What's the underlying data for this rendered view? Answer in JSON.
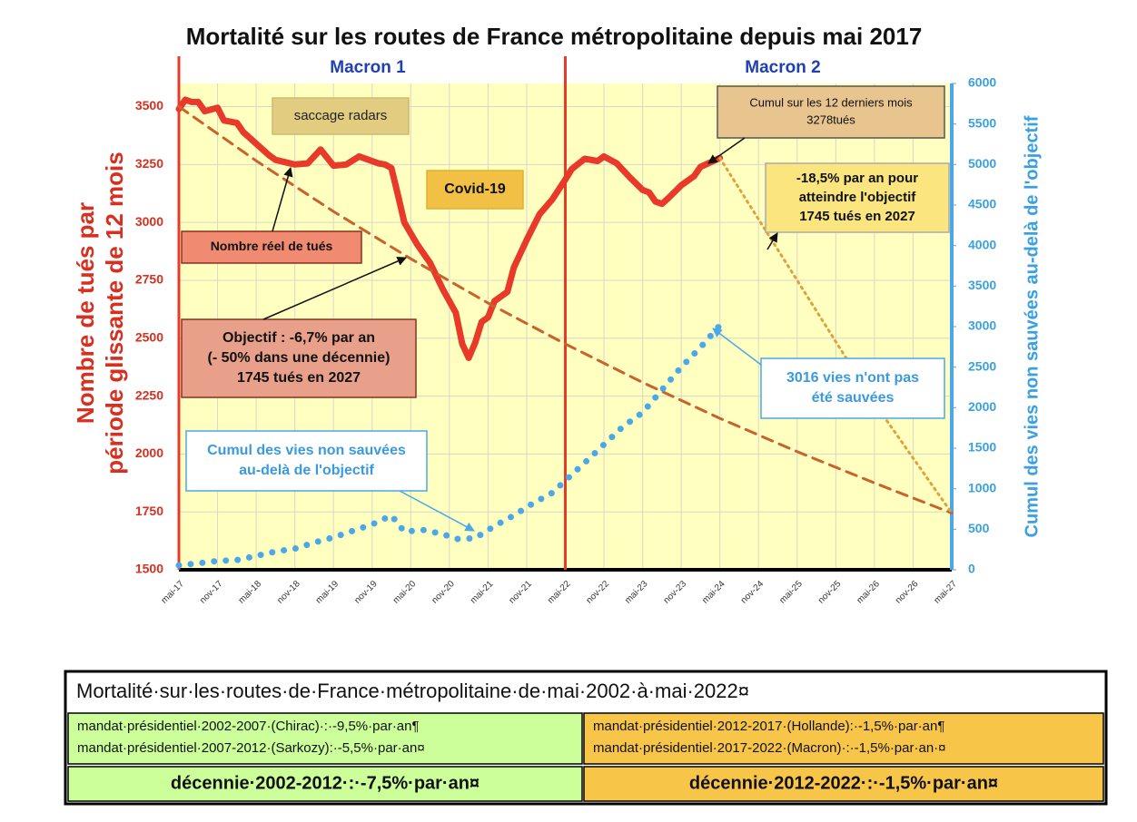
{
  "chart_data": {
    "type": "line",
    "title": "Mortalité sur les routes de France métropolitaine depuis mai 2017",
    "period_labels": [
      "Macron 1",
      "Macron 2"
    ],
    "period_lines": [
      0,
      60
    ],
    "ylabel": [
      "Nombre de tués par",
      "période glissante de 12 mois"
    ],
    "y2label": "Cumul des vies non sauvées au-delà de l'objectif",
    "xlim": [
      0,
      120
    ],
    "xticks": [
      {
        "value": 0,
        "label": "mai-17"
      },
      {
        "value": 6,
        "label": "nov-17"
      },
      {
        "value": 12,
        "label": "mai-18"
      },
      {
        "value": 18,
        "label": "nov-18"
      },
      {
        "value": 24,
        "label": "mai-19"
      },
      {
        "value": 30,
        "label": "nov-19"
      },
      {
        "value": 36,
        "label": "mai-20"
      },
      {
        "value": 42,
        "label": "nov-20"
      },
      {
        "value": 48,
        "label": "mai-21"
      },
      {
        "value": 54,
        "label": "nov-21"
      },
      {
        "value": 60,
        "label": "mai-22"
      },
      {
        "value": 66,
        "label": "nov-22"
      },
      {
        "value": 72,
        "label": "mai-23"
      },
      {
        "value": 78,
        "label": "nov-23"
      },
      {
        "value": 84,
        "label": "mai-24"
      },
      {
        "value": 90,
        "label": "nov-24"
      },
      {
        "value": 96,
        "label": "mai-25"
      },
      {
        "value": 102,
        "label": "nov-25"
      },
      {
        "value": 108,
        "label": "mai-26"
      },
      {
        "value": 114,
        "label": "nov-26"
      },
      {
        "value": 120,
        "label": "mai-27"
      }
    ],
    "ylim": [
      1500,
      3600
    ],
    "yticks": [
      1500,
      1750,
      2000,
      2250,
      2500,
      2750,
      3000,
      3250,
      3500
    ],
    "y2lim": [
      0,
      6000
    ],
    "y2ticks": [
      0,
      500,
      1000,
      1500,
      2000,
      2500,
      3000,
      3500,
      4000,
      4500,
      5000,
      5500,
      6000
    ],
    "grid": true,
    "series": [
      {
        "color": "#e8392a",
        "style": "solid",
        "width": 7,
        "x": [
          0,
          1,
          2,
          3,
          4,
          6,
          7,
          9,
          10,
          12,
          14,
          15,
          18,
          20,
          22,
          24,
          26,
          28,
          31,
          32,
          33,
          34,
          35,
          37,
          39,
          41,
          43,
          44,
          45,
          46,
          47,
          48,
          49,
          51,
          52,
          54,
          56,
          58,
          60,
          61,
          63,
          65,
          66,
          68,
          70,
          72,
          73,
          74,
          75,
          76,
          78,
          80,
          81,
          84
        ],
        "values": [
          3490,
          3530,
          3520,
          3520,
          3480,
          3495,
          3440,
          3430,
          3390,
          3340,
          3290,
          3270,
          3250,
          3255,
          3315,
          3245,
          3250,
          3285,
          3255,
          3250,
          3235,
          3120,
          3000,
          2905,
          2825,
          2710,
          2610,
          2475,
          2415,
          2480,
          2570,
          2590,
          2660,
          2700,
          2805,
          2925,
          3035,
          3100,
          3185,
          3230,
          3275,
          3265,
          3285,
          3255,
          3195,
          3140,
          3130,
          3090,
          3080,
          3105,
          3160,
          3200,
          3240,
          3278
        ]
      },
      {
        "color": "#c9622e",
        "style": "dashed",
        "width": 3,
        "x": [
          0,
          12,
          24,
          36,
          48,
          60,
          72,
          84,
          96,
          108,
          120
        ],
        "values": [
          3500,
          3266,
          3047,
          2843,
          2652,
          2475,
          2309,
          2154,
          2010,
          1875,
          1745
        ]
      },
      {
        "color": "#e0a040",
        "style": "dotted",
        "width": 3,
        "x": [
          84,
          96,
          108,
          120
        ],
        "values": [
          3278,
          2750,
          2220,
          1745
        ]
      },
      {
        "color": "#4aa8e8",
        "style": "dots",
        "width": 7,
        "axis": "y2",
        "x": [
          0,
          3,
          6,
          9,
          12,
          15,
          18,
          21,
          24,
          27,
          30,
          33,
          35,
          38,
          41,
          43,
          46,
          49,
          52,
          55,
          58,
          60,
          63,
          66,
          69,
          72,
          75,
          78,
          81,
          84
        ],
        "values": [
          55,
          80,
          110,
          120,
          170,
          225,
          260,
          335,
          400,
          480,
          560,
          670,
          470,
          490,
          440,
          380,
          390,
          540,
          670,
          820,
          950,
          1100,
          1320,
          1545,
          1770,
          1940,
          2220,
          2500,
          2745,
          3016
        ]
      }
    ],
    "annotations": [
      {
        "lines": [
          "saccage radars"
        ]
      },
      {
        "lines": [
          "Covid-19"
        ]
      },
      {
        "lines": [
          "Nombre réel de tués"
        ]
      },
      {
        "lines": [
          "Objectif : -6,7% par an",
          "(- 50% dans une décennie)",
          "1745 tués en 2027"
        ]
      },
      {
        "lines": [
          "Cumul sur les 12 derniers mois",
          "3278tués"
        ]
      },
      {
        "lines": [
          "-18,5% par an pour",
          "atteindre l'objectif",
          "1745 tués en 2027"
        ]
      },
      {
        "lines": [
          "3016 vies n'ont pas",
          "été sauvées"
        ]
      },
      {
        "lines": [
          "Cumul des vies non sauvées",
          "au-delà de l'objectif"
        ]
      }
    ]
  },
  "table": {
    "title": "Mortalité·sur·les·routes·de·France·métropolitaine·de·mai·2002·à·mai·2022¤",
    "rows": [
      [
        [
          "mandat·présidentiel·2002-2007·(Chirac)·:·-9,5%·par·an¶",
          "mandat·présidentiel·2007-2012·(Sarkozy):·-5,5%·par·an¤"
        ],
        [
          "mandat·présidentiel·2012-2017·(Hollande):·-1,5%·par·an¶",
          "mandat·présidentiel·2017-2022·(Macron)·:·-1,5%·par·an·¤"
        ]
      ],
      [
        [
          "décennie·2002-2012·:·-7,5%·par·an¤"
        ],
        [
          "décennie·2012-2022·:·-1,5%·par·an¤"
        ]
      ]
    ]
  }
}
